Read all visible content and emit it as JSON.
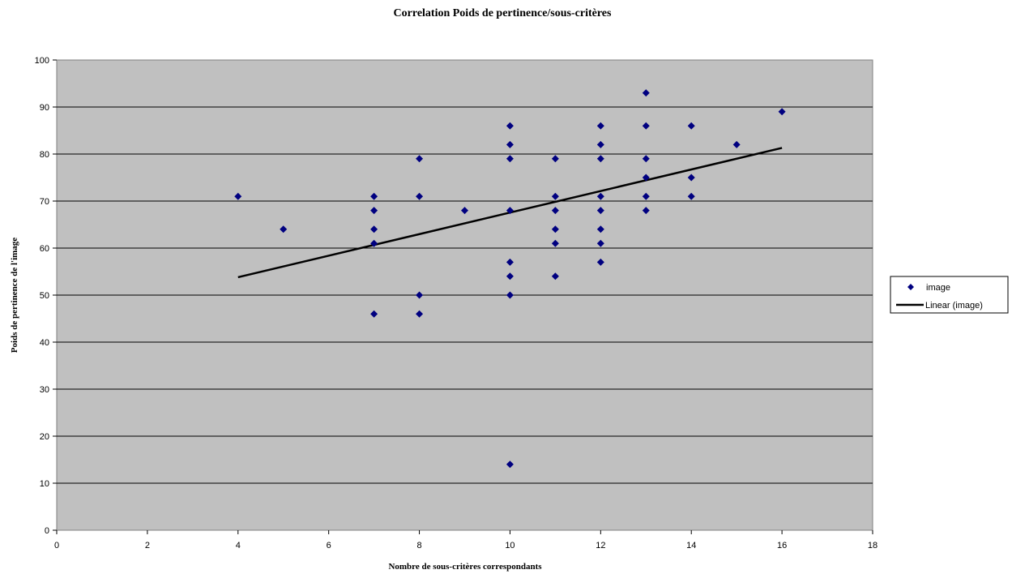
{
  "chart_data": {
    "type": "scatter",
    "title": "Correlation Poids de pertinence/sous-critères",
    "xlabel": "Nombre de sous-critères correspondants",
    "ylabel": "Poids de pertinence de l'image",
    "xlim": [
      0,
      18
    ],
    "ylim": [
      0,
      100
    ],
    "x_ticks": [
      0,
      2,
      4,
      6,
      8,
      10,
      12,
      14,
      16,
      18
    ],
    "y_ticks": [
      0,
      10,
      20,
      30,
      40,
      50,
      60,
      70,
      80,
      90,
      100
    ],
    "grid": "horizontal",
    "legend_position": "right",
    "colors": {
      "plot_bg": "#c0c0c0",
      "marker": "#000080",
      "trendline": "#000000"
    },
    "series": [
      {
        "name": "image",
        "marker": "diamond",
        "points": [
          [
            4,
            71
          ],
          [
            5,
            64
          ],
          [
            7,
            71
          ],
          [
            7,
            68
          ],
          [
            7,
            64
          ],
          [
            7,
            61
          ],
          [
            7,
            46
          ],
          [
            8,
            79
          ],
          [
            8,
            71
          ],
          [
            8,
            50
          ],
          [
            8,
            46
          ],
          [
            9,
            68
          ],
          [
            10,
            86
          ],
          [
            10,
            82
          ],
          [
            10,
            79
          ],
          [
            10,
            68
          ],
          [
            10,
            57
          ],
          [
            10,
            54
          ],
          [
            10,
            50
          ],
          [
            10,
            14
          ],
          [
            11,
            79
          ],
          [
            11,
            71
          ],
          [
            11,
            68
          ],
          [
            11,
            64
          ],
          [
            11,
            61
          ],
          [
            11,
            54
          ],
          [
            12,
            86
          ],
          [
            12,
            82
          ],
          [
            12,
            79
          ],
          [
            12,
            71
          ],
          [
            12,
            68
          ],
          [
            12,
            64
          ],
          [
            12,
            61
          ],
          [
            12,
            57
          ],
          [
            13,
            93
          ],
          [
            13,
            86
          ],
          [
            13,
            79
          ],
          [
            13,
            75
          ],
          [
            13,
            71
          ],
          [
            13,
            68
          ],
          [
            14,
            86
          ],
          [
            14,
            75
          ],
          [
            14,
            71
          ],
          [
            15,
            82
          ],
          [
            16,
            89
          ]
        ]
      },
      {
        "name": "Linear (image)",
        "type": "line",
        "points": [
          [
            4,
            53.8
          ],
          [
            16,
            81.3
          ]
        ]
      }
    ]
  }
}
